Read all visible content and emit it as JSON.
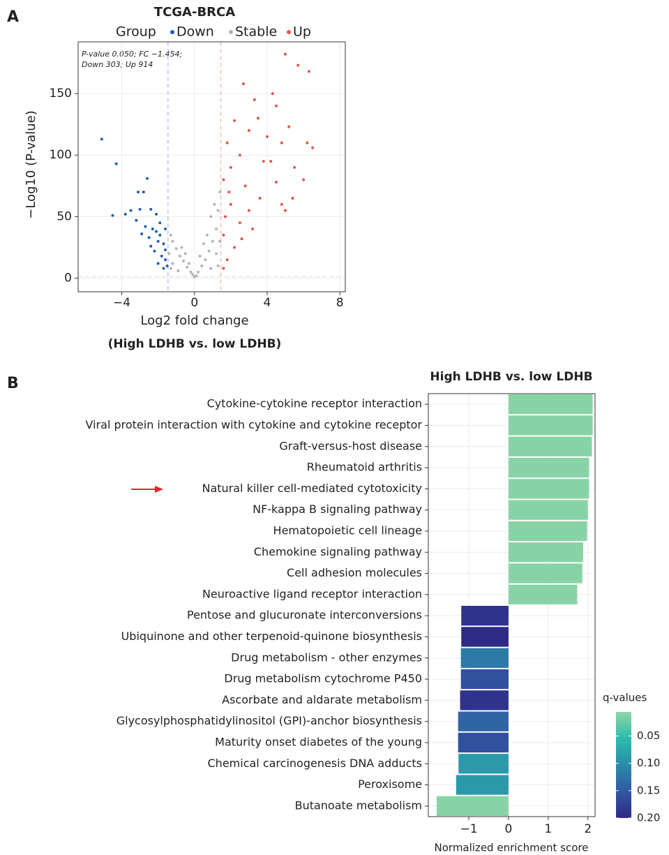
{
  "chart_data": [
    {
      "type": "scatter",
      "panel": "A",
      "title": "TCGA-BRCA",
      "legend_title": "Group",
      "annotations": [
        "P-value 0.050; FC −1.454;",
        "Down 303; Up 914"
      ],
      "xlabel": "Log2 fold change",
      "ylabel": "−Log10 (P-value)",
      "subtitle": "(High LDHB vs. low LDHB)",
      "xlim": [
        -6.4,
        8.3
      ],
      "ylim": [
        -11,
        192
      ],
      "xticks": [
        {
          "value": -4,
          "label": "−4"
        },
        0,
        4,
        8
      ],
      "yticks": [
        0,
        50,
        100,
        150
      ],
      "threshold_x": [
        -1.454,
        1.454
      ],
      "threshold_y": 1.301,
      "grid": true,
      "series": [
        {
          "name": "Down",
          "color": "#1f5fae",
          "x": [
            -5.1,
            -4.3,
            -2.6,
            -3.1,
            -2.8,
            -4.5,
            -3.8,
            -3.5,
            -3.0,
            -2.4,
            -2.1,
            -3.2,
            -2.7,
            -2.3,
            -1.9,
            -1.6,
            -2.5,
            -2.0,
            -1.7,
            -2.2,
            -1.8,
            -1.6,
            -2.0,
            -1.5,
            -2.4,
            -1.9,
            -1.6,
            -2.9,
            -1.7,
            -2.1
          ],
          "values": [
            113,
            93,
            81,
            70,
            70,
            51,
            52,
            55,
            56,
            56,
            52,
            47,
            42,
            40,
            45,
            40,
            33,
            30,
            28,
            22,
            18,
            15,
            12,
            10,
            26,
            35,
            23,
            36,
            8,
            38
          ]
        },
        {
          "name": "Stable",
          "color": "#b3b3b3",
          "x": [
            0,
            0.2,
            -0.2,
            0.4,
            -0.4,
            0.6,
            -0.6,
            0.8,
            -0.8,
            1.0,
            -1.0,
            1.2,
            -1.2,
            1.3,
            -1.3,
            1.1,
            0.9,
            1.4,
            0.5,
            -0.5,
            0.3,
            -0.3,
            0.7,
            -0.7,
            1.2,
            -1.2,
            1.4,
            -1.4,
            0.1,
            -0.1,
            0.9,
            -0.9,
            1.3,
            -1.3
          ],
          "values": [
            1,
            5,
            5,
            10,
            9,
            15,
            14,
            22,
            18,
            30,
            24,
            40,
            30,
            55,
            35,
            60,
            50,
            70,
            28,
            20,
            18,
            12,
            35,
            25,
            20,
            12,
            30,
            20,
            2,
            3,
            8,
            6,
            10,
            8
          ]
        },
        {
          "name": "Up",
          "color": "#e8534a",
          "x": [
            5.0,
            5.7,
            6.3,
            4.3,
            2.7,
            4.5,
            3.3,
            3.5,
            5.2,
            6.2,
            6.5,
            4.8,
            3.0,
            2.2,
            4.0,
            2.5,
            5.5,
            4.5,
            6.0,
            3.8,
            1.8,
            2.0,
            1.6,
            2.8,
            3.6,
            4.8,
            5.0,
            2.0,
            1.7,
            2.5,
            3.2,
            1.6,
            2.2,
            1.8,
            1.6,
            2.6,
            3.0,
            4.2,
            5.4,
            1.9
          ],
          "values": [
            182,
            173,
            168,
            150,
            158,
            140,
            145,
            130,
            123,
            110,
            106,
            110,
            120,
            128,
            115,
            100,
            90,
            78,
            80,
            95,
            110,
            90,
            80,
            75,
            65,
            60,
            55,
            60,
            50,
            45,
            40,
            35,
            25,
            15,
            8,
            32,
            55,
            95,
            65,
            70
          ]
        }
      ]
    },
    {
      "type": "bar",
      "orientation": "horizontal",
      "panel": "B",
      "title": "High LDHB vs. low LDHB",
      "xlabel": "Normalized enrichment score",
      "categories": [
        "Cytokine-cytokine receptor interaction",
        "Viral protein interaction with cytokine and cytokine receptor",
        "Graft-versus-host disease",
        "Rheumatoid arthritis",
        "Natural killer cell-mediated cytotoxicity",
        "NF-kappa B signaling pathway",
        "Hematopoietic cell lineage",
        "Chemokine signaling pathway",
        "Cell adhesion molecules",
        "Neuroactive ligand receptor interaction",
        "Pentose and glucuronate interconversions",
        "Ubiquinone and other terpenoid-quinone biosynthesis",
        "Drug metabolism - other enzymes",
        "Drug metabolism cytochrome P450",
        "Ascorbate and aldarate metabolism",
        "Glycosylphosphatidylinositol (GPI)-anchor biosynthesis",
        "Maturity onset diabetes of the young",
        "Chemical carcinogenesis DNA adducts",
        "Peroxisome",
        "Butanoate metabolism"
      ],
      "values": [
        2.12,
        2.12,
        2.1,
        2.03,
        2.03,
        2.0,
        1.98,
        1.88,
        1.86,
        1.73,
        -1.19,
        -1.19,
        -1.2,
        -1.2,
        -1.22,
        -1.27,
        -1.27,
        -1.26,
        -1.32,
        -1.81
      ],
      "q_values": [
        0.01,
        0.01,
        0.01,
        0.01,
        0.01,
        0.01,
        0.01,
        0.01,
        0.01,
        0.01,
        0.19,
        0.2,
        0.12,
        0.16,
        0.19,
        0.14,
        0.16,
        0.09,
        0.09,
        0.01
      ],
      "xlim": [
        -2.02,
        2.18
      ],
      "xticks": [
        {
          "value": -1,
          "label": "−1"
        },
        0,
        1,
        2
      ],
      "grid": true,
      "colorbar": {
        "title": "q-values",
        "lim": [
          0.006,
          0.2
        ],
        "ticks": [
          0.05,
          {
            "value": 0.1,
            "label": "0.10"
          },
          0.15,
          {
            "value": 0.2,
            "label": "0.20"
          }
        ],
        "colors": [
          "#90d5a4",
          "#2bbcad",
          "#2a8ca8",
          "#3258a3",
          "#2e2a86"
        ]
      }
    }
  ]
}
